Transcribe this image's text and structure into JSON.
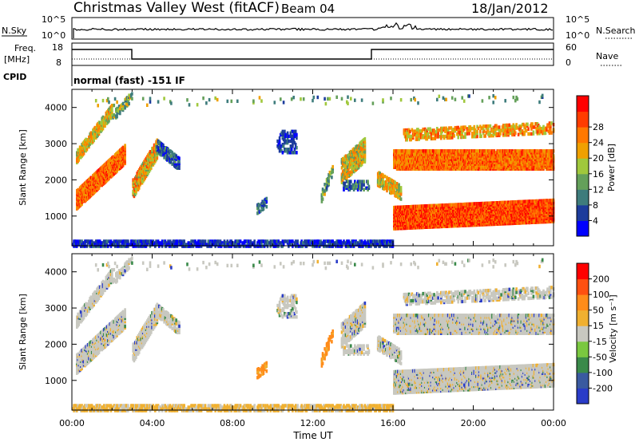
{
  "header": {
    "station": "Christmas Valley West (fitACF)",
    "beam": "Beam 04",
    "date": "18/Jan/2012"
  },
  "strips": {
    "nsky_label": "N.Sky",
    "nsearch_label": "N.Search",
    "nsky_ticks": [
      "10^5",
      "10^0"
    ],
    "freq_label_1": "Freq.",
    "freq_label_2": "[MHz]",
    "freq_ticks": [
      "18",
      "8"
    ],
    "nave_label": "Nave",
    "nave_ticks": [
      "60",
      "0"
    ],
    "cpid_label": "CPID",
    "cpid_text": "normal (fast) -151 IF"
  },
  "chart_data": [
    {
      "type": "heatmap",
      "name": "power",
      "ylabel": "Slant Range [km]",
      "xlabel": "Time UT",
      "xlim": [
        0,
        24
      ],
      "ylim": [
        180,
        4500
      ],
      "yticks": [
        1000,
        2000,
        3000,
        4000
      ],
      "xtick_labels": [
        "00:00",
        "04:00",
        "08:00",
        "12:00",
        "16:00",
        "20:00",
        "00:00"
      ],
      "xticks": [
        0,
        4,
        8,
        12,
        16,
        20,
        24
      ],
      "colorbar": {
        "label": "Power [dB]",
        "tick_labels": [
          "4",
          "8",
          "12",
          "16",
          "20",
          "24",
          "28"
        ],
        "colors": [
          "#0000ff",
          "#1c3c9c",
          "#3e7c7c",
          "#64a05a",
          "#a0c83c",
          "#f0a000",
          "#ff7800",
          "#ff3c00",
          "#ff0000"
        ]
      }
    },
    {
      "type": "heatmap",
      "name": "velocity",
      "ylabel": "Slant Range [km]",
      "xlabel": "Time UT",
      "xlim": [
        0,
        24
      ],
      "ylim": [
        180,
        4500
      ],
      "yticks": [
        1000,
        2000,
        3000,
        4000
      ],
      "xtick_labels": [
        "00:00",
        "04:00",
        "08:00",
        "12:00",
        "16:00",
        "20:00",
        "00:00"
      ],
      "xticks": [
        0,
        4,
        8,
        12,
        16,
        20,
        24
      ],
      "colorbar": {
        "label": "Velocity [m s⁻¹]",
        "tick_labels": [
          "200",
          "100",
          "50",
          "15",
          "-15",
          "-50",
          "-100",
          "-200"
        ],
        "colors": [
          "#2a3cc8",
          "#3a5aa0",
          "#3a8a4a",
          "#7ac840",
          "#c8c8c0",
          "#f0b030",
          "#ff8c1a",
          "#ff5010",
          "#ff0000"
        ]
      }
    }
  ]
}
